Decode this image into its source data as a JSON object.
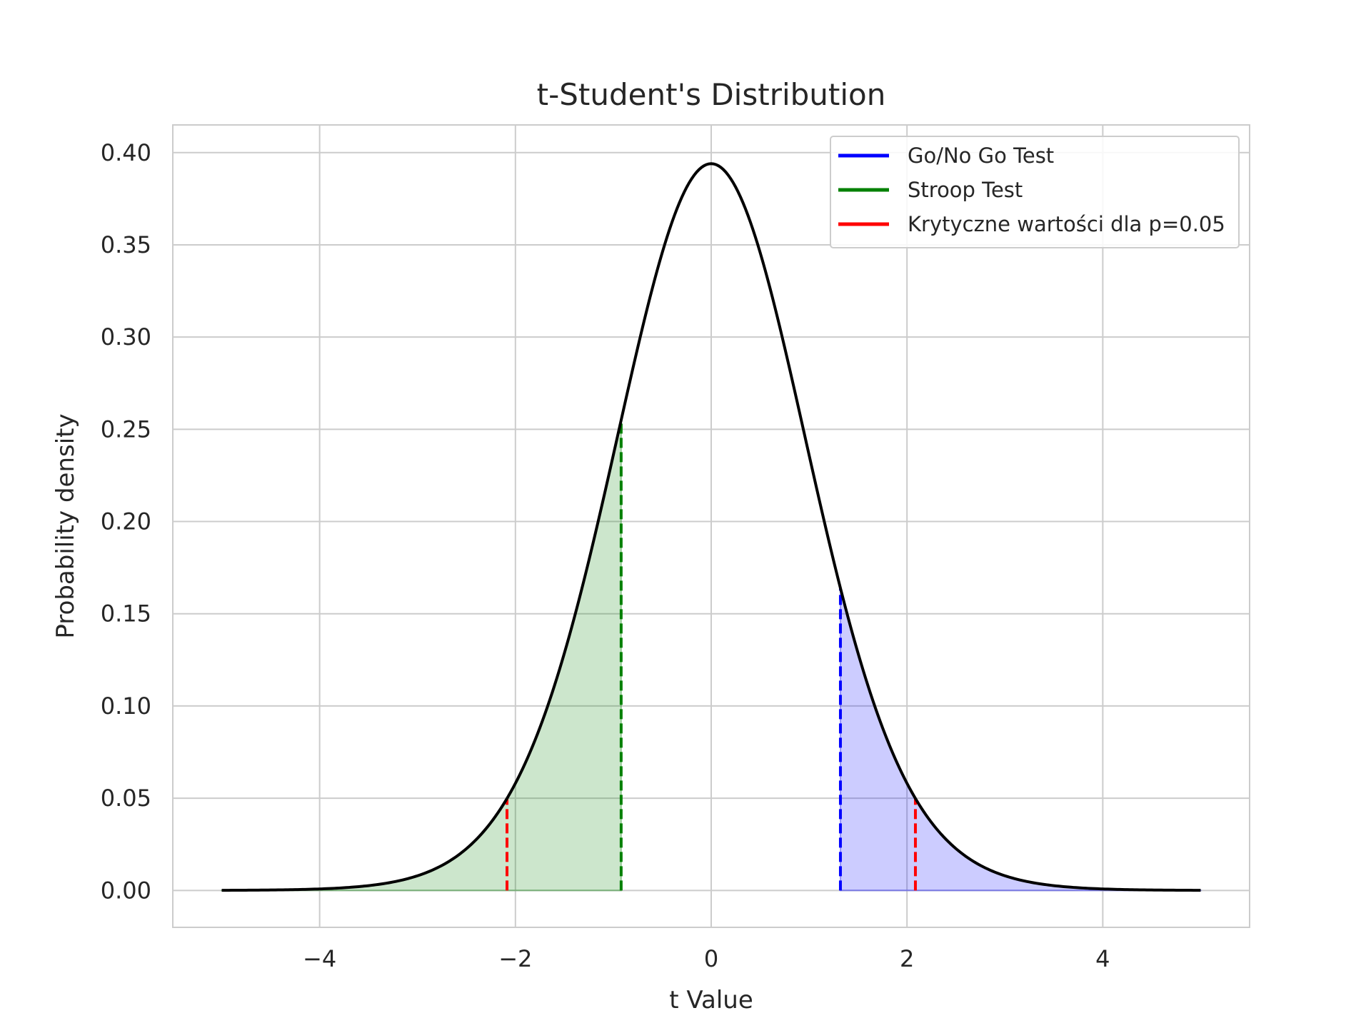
{
  "chart_data": {
    "type": "line",
    "title": "t-Student's Distribution",
    "xlabel": "t Value",
    "ylabel": "Probability density",
    "xlim": [
      -5.5,
      5.5
    ],
    "ylim": [
      -0.02,
      0.415
    ],
    "x_ticks": [
      -4,
      -2,
      0,
      2,
      4
    ],
    "x_tick_labels": [
      "−4",
      "−2",
      "0",
      "2",
      "4"
    ],
    "y_ticks": [
      0.0,
      0.05,
      0.1,
      0.15,
      0.2,
      0.25,
      0.3,
      0.35,
      0.4
    ],
    "y_tick_labels": [
      "0.00",
      "0.05",
      "0.10",
      "0.15",
      "0.20",
      "0.25",
      "0.30",
      "0.35",
      "0.40"
    ],
    "grid": true,
    "legend_position": "top-right",
    "distribution": {
      "name": "t",
      "df": 20,
      "x_range": [
        -5,
        5
      ],
      "color": "#000000"
    },
    "series": [
      {
        "name": "Go/No Go Test",
        "x": 1.32,
        "color": "#0000ff",
        "style": "dashed",
        "fill": {
          "from": 1.32,
          "to": 5,
          "color": "#0000ff"
        }
      },
      {
        "name": "Stroop Test",
        "x": -0.92,
        "color": "#008000",
        "style": "dashed",
        "fill": {
          "from": -5,
          "to": -0.92,
          "color": "#008000"
        }
      },
      {
        "name": "Krytyczne wartości dla p=0.05",
        "x": [
          -2.086,
          2.086
        ],
        "color": "#ff0000",
        "style": "dashed"
      }
    ]
  }
}
